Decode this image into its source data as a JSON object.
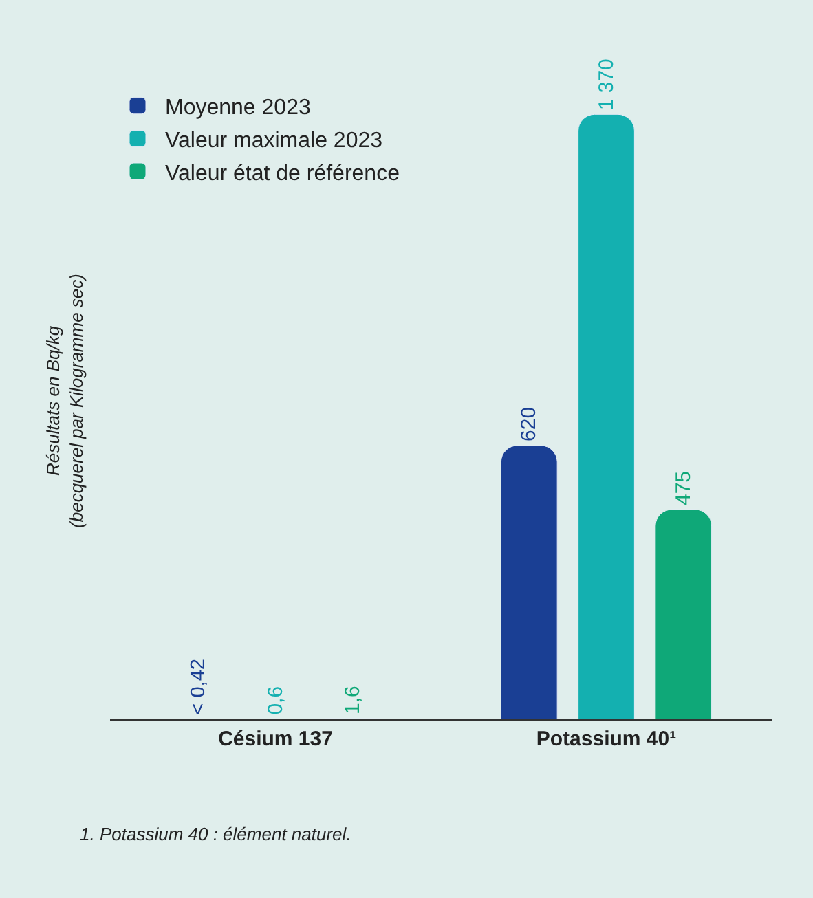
{
  "chart_data": {
    "type": "bar",
    "ylabel": "Résultats en Bq/kg\n(becquerel par Kilogramme sec)",
    "categories": [
      "Césium 137",
      "Potassium 40¹"
    ],
    "series": [
      {
        "name": "Moyenne 2023",
        "color": "#1a3f94",
        "values": [
          0.42,
          620
        ],
        "value_labels": [
          "< 0,42",
          "620"
        ]
      },
      {
        "name": "Valeur maximale 2023",
        "color": "#14b0b0",
        "values": [
          0.6,
          1370
        ],
        "value_labels": [
          "0,6",
          "1 370"
        ]
      },
      {
        "name": "Valeur état de référence",
        "color": "#0fa878",
        "values": [
          1.6,
          475
        ],
        "value_labels": [
          "1,6",
          "475"
        ]
      }
    ],
    "annotations": [
      "1. Potassium 40 : élément naturel."
    ],
    "legend": "top left",
    "grid": false
  }
}
